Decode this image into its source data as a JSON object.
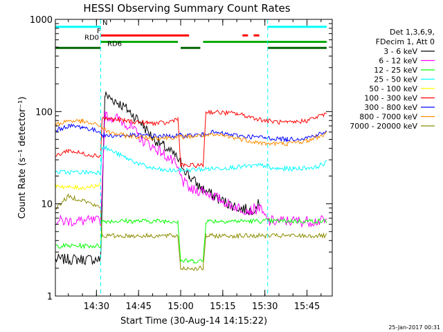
{
  "chart_data": {
    "type": "line",
    "title": "HESSI Observing Summary Count Rates",
    "xlabel": "Start Time (30-Aug-14 14:15:22)",
    "ylabel": "Count Rate (s⁻¹ detector⁻¹)",
    "y_scale": "log",
    "ylim": [
      1,
      1000
    ],
    "xlim": [
      "14:15:22",
      "15:54:00"
    ],
    "x_ticks": [
      "14:30",
      "14:45",
      "15:00",
      "15:15",
      "15:30",
      "15:45"
    ],
    "y_ticks": [
      "1",
      "10",
      "100",
      "1000"
    ],
    "legend_header": [
      "Det 1,3,6,9,",
      "FDecim 1, Att 0"
    ],
    "legend_placement": "right",
    "series": [
      {
        "name": "3 - 6 keV",
        "color": "#000000",
        "x": [
          "14:15:22",
          "14:31:30",
          "14:33",
          "14:37",
          "14:42",
          "14:46",
          "14:50",
          "14:54",
          "14:58",
          "15:00",
          "15:03",
          "15:07",
          "15:12",
          "15:17",
          "15:21",
          "15:25",
          "15:28"
        ],
        "values": [
          2.5,
          2.5,
          150,
          130,
          100,
          75,
          52,
          42,
          33,
          28,
          20,
          15,
          12,
          10,
          9,
          8.5,
          10
        ]
      },
      {
        "name": "6 - 12 keV",
        "color": "#ff00ff",
        "x": [
          "14:15:22",
          "14:31:30",
          "14:33",
          "14:37",
          "14:42",
          "14:46",
          "14:50",
          "14:54",
          "14:58",
          "15:01",
          "15:04",
          "15:08",
          "15:12",
          "15:17",
          "15:21",
          "15:25",
          "15:28",
          "15:31",
          "15:52"
        ],
        "values": [
          6.5,
          6.5,
          90,
          85,
          70,
          50,
          42,
          35,
          27,
          17,
          14,
          14,
          12,
          10,
          9,
          8.5,
          9,
          6.5,
          6.5
        ]
      },
      {
        "name": "12 - 25 keV",
        "color": "#00ff00",
        "x": [
          "14:15:22",
          "14:31:30",
          "14:32",
          "14:59",
          "15:00",
          "15:08",
          "15:09",
          "15:52"
        ],
        "values": [
          3.5,
          3.5,
          6.5,
          6.5,
          2.4,
          2.4,
          6.5,
          6.5
        ]
      },
      {
        "name": "25 - 50 keV",
        "color": "#00ffff",
        "x": [
          "14:15:22",
          "14:31:30",
          "14:32",
          "14:40",
          "14:48",
          "14:54",
          "15:00",
          "15:10",
          "15:20",
          "15:28",
          "15:31",
          "15:32",
          "15:40",
          "15:48",
          "15:52"
        ],
        "values": [
          22,
          22,
          42,
          32,
          25,
          23,
          23,
          24,
          25,
          26,
          26,
          24,
          24,
          25,
          28
        ]
      },
      {
        "name": "50 - 100 keV",
        "color": "#ffff00",
        "x": [
          "14:15:22",
          "14:20",
          "14:25",
          "14:31:30"
        ],
        "values": [
          16,
          15,
          15,
          16
        ]
      },
      {
        "name": "100 - 300 keV",
        "color": "#ff0000",
        "x": [
          "14:15:22",
          "14:20",
          "14:25",
          "14:31:30",
          "14:32",
          "14:40",
          "14:48",
          "14:55",
          "14:59",
          "15:00",
          "15:08",
          "15:09",
          "15:20",
          "15:30",
          "15:38",
          "15:45",
          "15:52"
        ],
        "values": [
          33,
          38,
          35,
          33,
          85,
          80,
          75,
          75,
          85,
          26,
          26,
          100,
          95,
          80,
          75,
          80,
          95
        ]
      },
      {
        "name": "300 - 800 keV",
        "color": "#0000ff",
        "x": [
          "14:15:22",
          "14:20",
          "14:25",
          "14:31:30",
          "14:32",
          "14:40",
          "14:48",
          "14:55",
          "15:00",
          "15:08",
          "15:10",
          "15:20",
          "15:30",
          "15:38",
          "15:45",
          "15:52"
        ],
        "values": [
          62,
          70,
          68,
          60,
          55,
          55,
          55,
          54,
          55,
          56,
          60,
          55,
          52,
          50,
          52,
          60
        ]
      },
      {
        "name": "800 - 7000 keV",
        "color": "#ff8c00",
        "x": [
          "14:15:22",
          "14:20",
          "14:25",
          "14:31:30",
          "14:34",
          "14:40",
          "14:48",
          "14:55",
          "15:00",
          "15:08",
          "15:15",
          "15:22",
          "15:30",
          "15:38",
          "15:45",
          "15:52"
        ],
        "values": [
          72,
          80,
          78,
          70,
          60,
          55,
          52,
          52,
          53,
          55,
          55,
          50,
          45,
          45,
          48,
          58
        ]
      },
      {
        "name": "7000 - 20000 keV",
        "color": "#8b8b00",
        "x": [
          "14:15:22",
          "14:20",
          "14:25",
          "14:31:30",
          "14:32",
          "14:59",
          "15:00",
          "15:08",
          "15:09",
          "15:52"
        ],
        "values": [
          9,
          12,
          11,
          9,
          4.5,
          4.5,
          2.0,
          2.0,
          4.5,
          4.5
        ]
      }
    ],
    "flags": [
      {
        "name": "N",
        "color": "#00ffff",
        "level": 830,
        "segments": [
          [
            "14:15:22",
            "14:31:30"
          ],
          [
            "15:31",
            "15:52"
          ]
        ]
      },
      {
        "name": "F",
        "color": "#ff0000",
        "level": 670,
        "segments": [
          [
            "14:31:30",
            "15:03"
          ],
          [
            "15:22",
            "15:24"
          ],
          [
            "15:26",
            "15:28"
          ]
        ]
      },
      {
        "name": "RD0",
        "color": "#00aa00",
        "level": 570,
        "segments": [
          [
            "14:31:30",
            "14:59"
          ],
          [
            "15:08",
            "15:52"
          ]
        ]
      },
      {
        "name": "RD6",
        "color": "#006400",
        "level": 490,
        "segments": [
          [
            "14:15:22",
            "14:31:30"
          ],
          [
            "15:00",
            "15:07"
          ],
          [
            "15:31",
            "15:52"
          ]
        ]
      }
    ],
    "eclipse_markers": [
      "14:31:30",
      "15:31"
    ],
    "footer_date": "25-Jan-2017 00:31"
  }
}
